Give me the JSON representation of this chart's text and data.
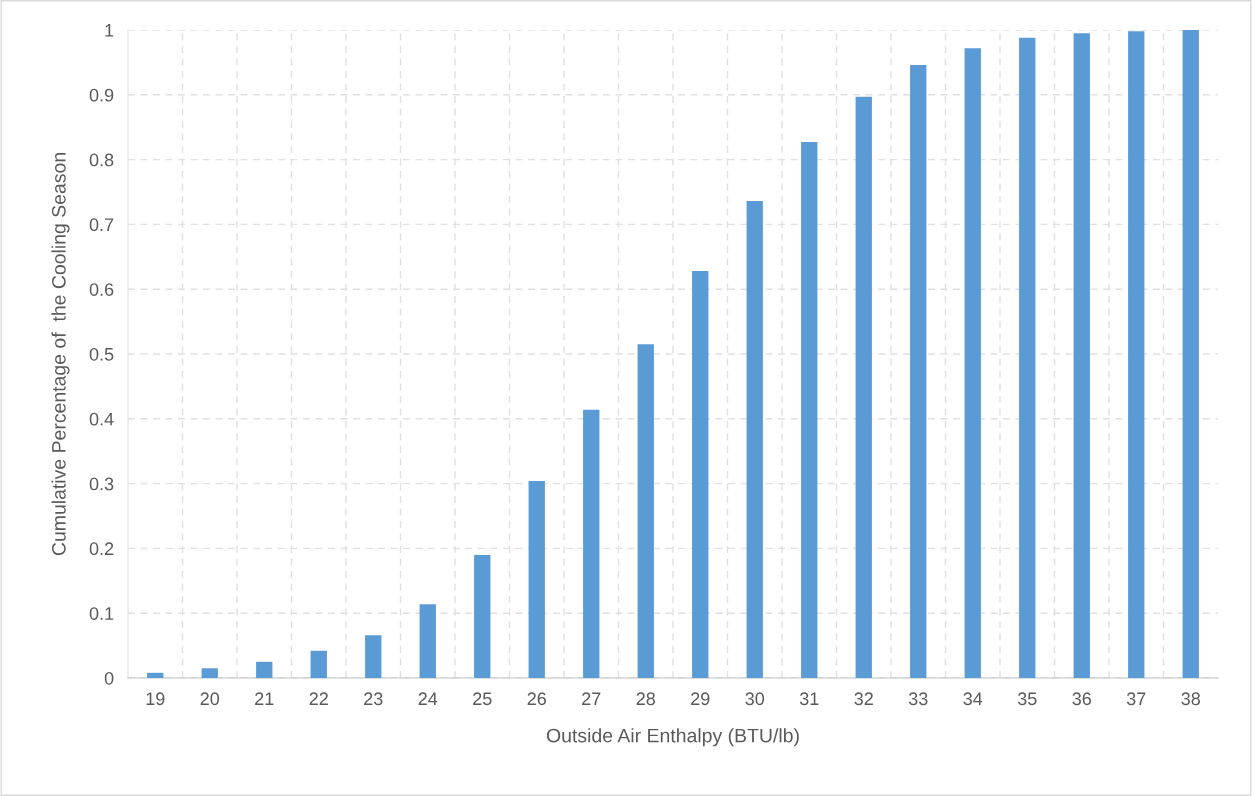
{
  "chart_data": {
    "type": "bar",
    "xlabel": "Outside Air Enthalpy (BTU/lb)",
    "ylabel": "Cumulative Percentage of  the Cooling Season",
    "categories": [
      "19",
      "20",
      "21",
      "22",
      "23",
      "24",
      "25",
      "26",
      "27",
      "28",
      "29",
      "30",
      "31",
      "32",
      "33",
      "34",
      "35",
      "36",
      "37",
      "38"
    ],
    "values": [
      0.008,
      0.015,
      0.025,
      0.042,
      0.066,
      0.114,
      0.19,
      0.304,
      0.414,
      0.515,
      0.628,
      0.736,
      0.827,
      0.897,
      0.946,
      0.972,
      0.988,
      0.995,
      0.998,
      1.0
    ],
    "color": "#5b9bd5",
    "ylim": [
      0,
      1
    ],
    "yticks": [
      0,
      0.1,
      0.2,
      0.3,
      0.4,
      0.5,
      0.6,
      0.7,
      0.8,
      0.9,
      1
    ],
    "grid": true
  }
}
